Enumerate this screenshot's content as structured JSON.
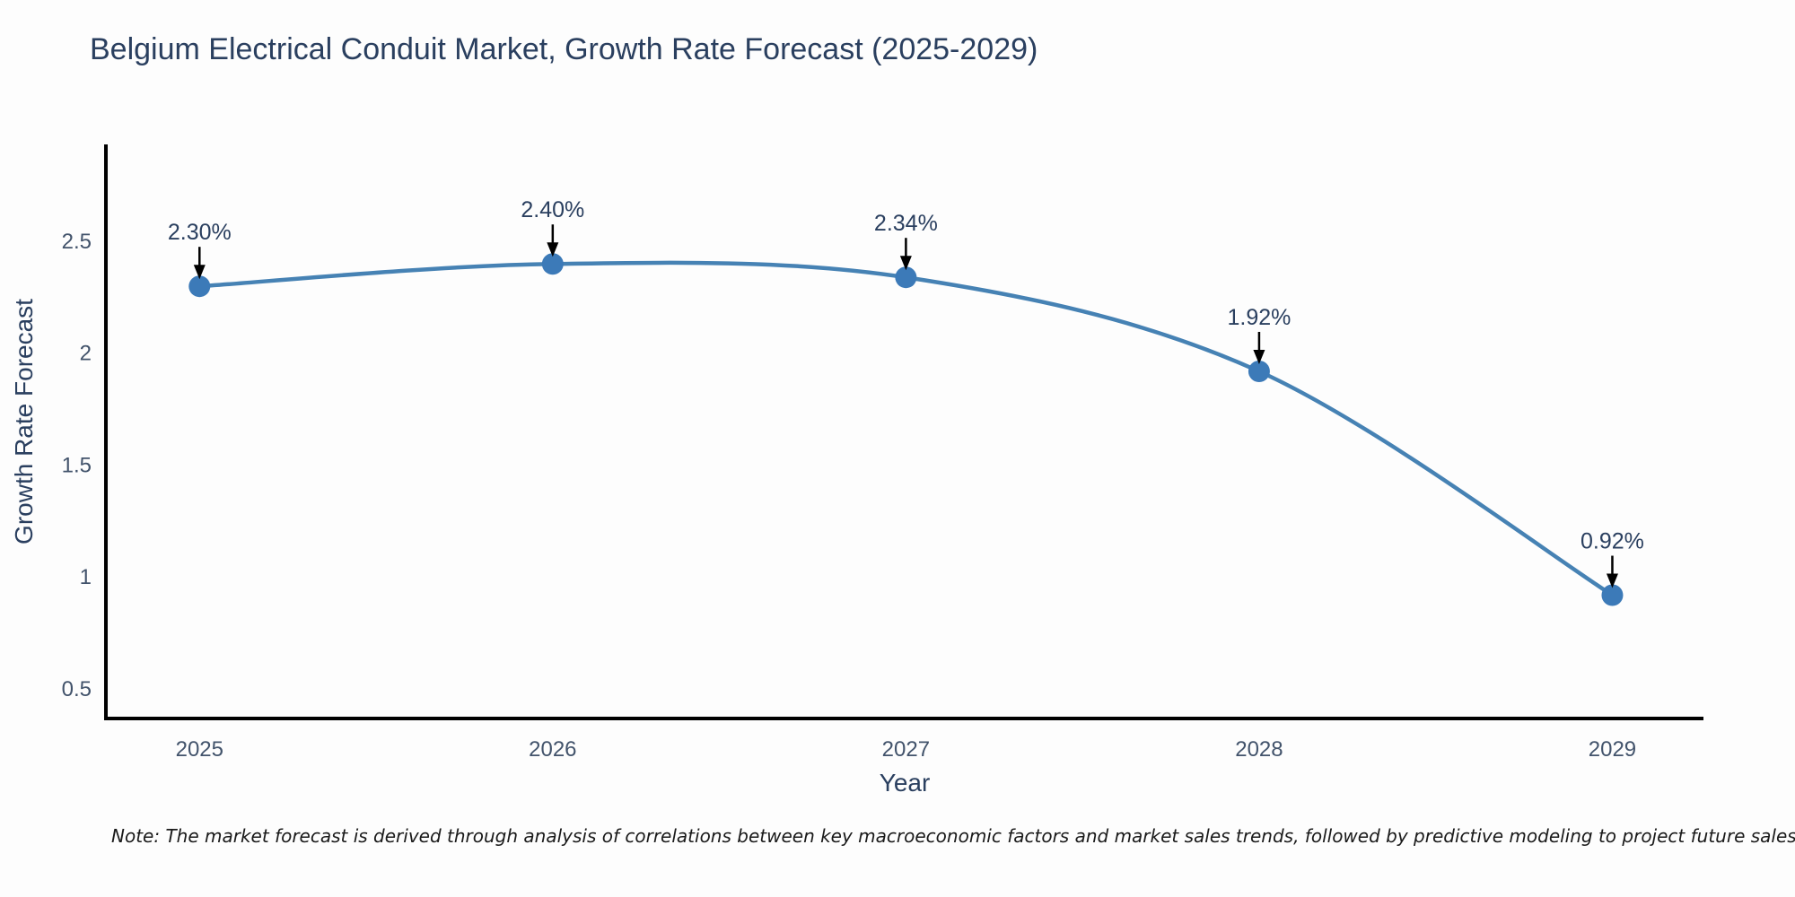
{
  "title": "Belgium Electrical Conduit Market, Growth Rate Forecast (2025-2029)",
  "note": "Note: The market forecast is derived through analysis of correlations between key macroeconomic factors and market sales trends, followed by predictive modeling to project future sales",
  "chart_data": {
    "type": "line",
    "title": "Belgium Electrical Conduit Market, Growth Rate Forecast (2025-2029)",
    "x": [
      2025,
      2026,
      2027,
      2028,
      2029
    ],
    "values": [
      2.3,
      2.4,
      2.34,
      1.92,
      0.92
    ],
    "point_labels": [
      "2.30%",
      "2.40%",
      "2.34%",
      "1.92%",
      "0.92%"
    ],
    "xlabel": "Year",
    "ylabel": "Growth Rate Forecast",
    "xticks": [
      "2025",
      "2026",
      "2027",
      "2028",
      "2029"
    ],
    "yticks": [
      0.5,
      1,
      1.5,
      2,
      2.5
    ],
    "ytick_labels": [
      "0.5",
      "1",
      "1.5",
      "2",
      "2.5"
    ],
    "xlim": [
      2024.735,
      2029.258
    ],
    "ylim": [
      0.369,
      2.934
    ],
    "line_shape": "spline",
    "grid": false,
    "legend": false,
    "line_color": "#4682b4",
    "marker_color": "#3c7ab8",
    "axis_line_color": "#000000",
    "annotation_text_color": "#2a3f5f",
    "annotation_arrow_color": "#000000",
    "tick_color": "#42536b",
    "title_color": "#2a3f5f",
    "background_color": "#fdfdfd"
  }
}
